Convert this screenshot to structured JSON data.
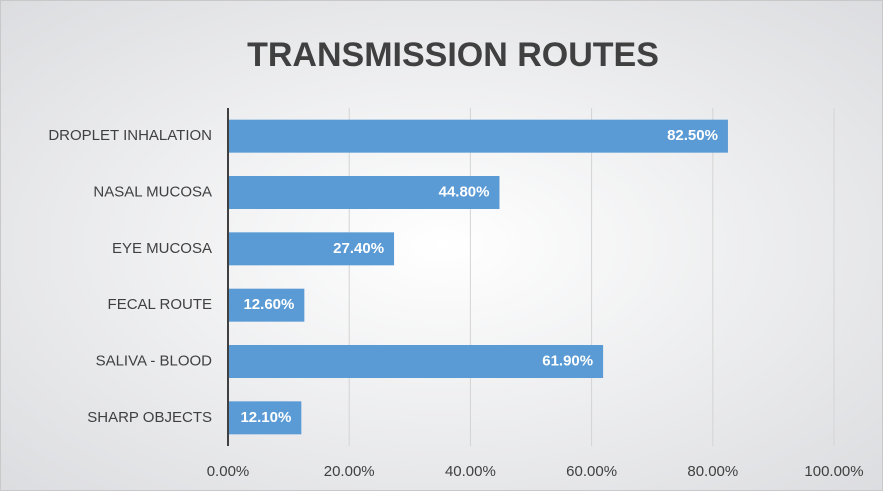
{
  "chart_data": {
    "type": "hbar",
    "title": "TRANSMISSION ROUTES",
    "categories": [
      "DROPLET INHALATION",
      "NASAL MUCOSA",
      "EYE MUCOSA",
      "FECAL ROUTE",
      "SALIVA - BLOOD",
      "SHARP OBJECTS"
    ],
    "values": [
      82.5,
      44.8,
      27.4,
      12.6,
      61.9,
      12.1
    ],
    "value_labels": [
      "82.50%",
      "44.80%",
      "27.40%",
      "12.60%",
      "61.90%",
      "12.10%"
    ],
    "color": "#5b9bd5",
    "xlim": [
      0,
      100
    ],
    "xticks": [
      {
        "value": 0,
        "label": "0.00%"
      },
      {
        "value": 20,
        "label": "20.00%"
      },
      {
        "value": 40,
        "label": "40.00%"
      },
      {
        "value": 60,
        "label": "60.00%"
      },
      {
        "value": 80,
        "label": "80.00%"
      },
      {
        "value": 100,
        "label": "100.00%"
      }
    ],
    "grid": true
  }
}
